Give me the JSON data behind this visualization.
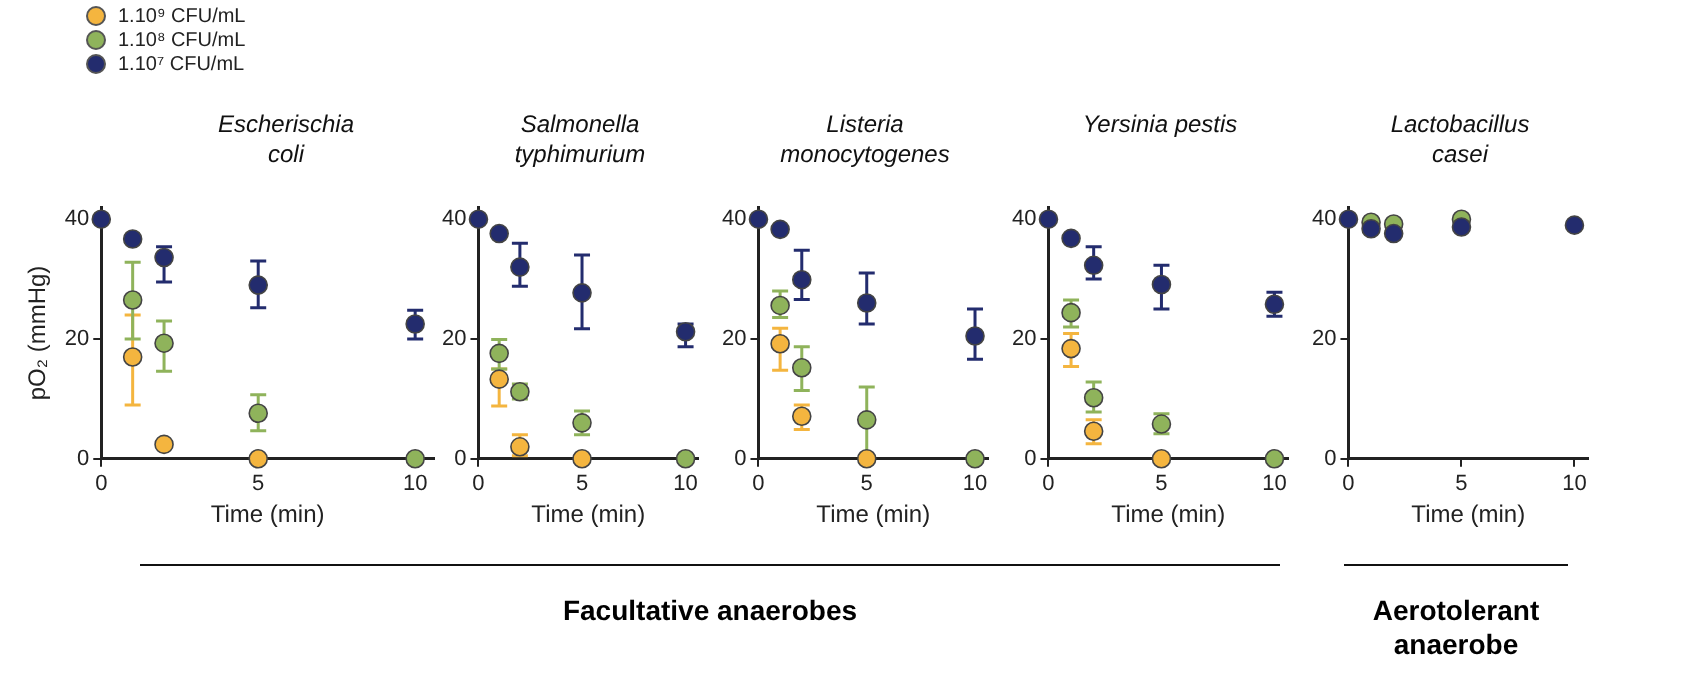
{
  "chart_data": [
    {
      "type": "scatter",
      "title": "Escherischia\ncoli",
      "xlabel": "Time (min)",
      "ylabel": "pO₂ (mmHg)",
      "x": [
        0,
        1,
        2,
        5,
        10
      ],
      "xlim": [
        0,
        10.6
      ],
      "xticks": [
        0,
        5,
        10
      ],
      "ylim": [
        0,
        42
      ],
      "yticks": [
        0,
        20,
        40
      ],
      "grid": false,
      "marker": "circle",
      "legend": "top left",
      "annotations": [
        "Facultative anaerobes"
      ],
      "series": [
        {
          "name": "1.10⁹ CFU/mL",
          "color": "#f4b53f",
          "values": [
            null,
            17,
            2.4,
            0,
            null
          ],
          "errors": [
            null,
            [
              9,
              24
            ],
            null,
            null,
            null
          ]
        },
        {
          "name": "1.10⁸ CFU/mL",
          "color": "#8fb35b",
          "values": [
            null,
            26.5,
            19.3,
            7.6,
            0
          ],
          "errors": [
            null,
            [
              20,
              32.8
            ],
            [
              14.6,
              23
            ],
            [
              4.7,
              10.7
            ],
            null
          ]
        },
        {
          "name": "1.10⁷ CFU/mL",
          "color": "#232c6e",
          "values": [
            40,
            36.7,
            33.6,
            29,
            22.5
          ],
          "errors": [
            null,
            null,
            [
              29.5,
              35.4
            ],
            [
              25.2,
              33
            ],
            [
              20,
              24.8
            ]
          ]
        }
      ]
    },
    {
      "type": "scatter",
      "title": "Salmonella\ntyphimurium",
      "xlabel": "Time (min)",
      "x": [
        0,
        1,
        2,
        5,
        10
      ],
      "xlim": [
        0,
        10.6
      ],
      "xticks": [
        0,
        5,
        10
      ],
      "ylim": [
        0,
        42
      ],
      "yticks": [
        0,
        20,
        40
      ],
      "grid": false,
      "marker": "circle",
      "series": [
        {
          "color": "#f4b53f",
          "values": [
            null,
            13.3,
            2,
            0,
            null
          ],
          "errors": [
            null,
            [
              8.8,
              15
            ],
            [
              0.5,
              4
            ],
            null,
            null
          ]
        },
        {
          "color": "#8fb35b",
          "values": [
            null,
            17.6,
            11.2,
            6,
            0
          ],
          "errors": [
            null,
            [
              15,
              19.9
            ],
            [
              10,
              12.5
            ],
            [
              4,
              8
            ],
            null
          ]
        },
        {
          "color": "#232c6e",
          "values": [
            40,
            37.6,
            32,
            27.7,
            21.2
          ],
          "errors": [
            null,
            null,
            [
              28.8,
              36
            ],
            [
              21.7,
              34
            ],
            [
              18.7,
              22.5
            ]
          ]
        }
      ]
    },
    {
      "type": "scatter",
      "title": "Listeria\nmonocytogenes",
      "xlabel": "Time (min)",
      "x": [
        0,
        1,
        2,
        5,
        10
      ],
      "xlim": [
        0,
        10.6
      ],
      "xticks": [
        0,
        5,
        10
      ],
      "ylim": [
        0,
        42
      ],
      "yticks": [
        0,
        20,
        40
      ],
      "grid": false,
      "marker": "circle",
      "series": [
        {
          "color": "#f4b53f",
          "values": [
            null,
            19.2,
            7.1,
            0,
            null
          ],
          "errors": [
            null,
            [
              14.8,
              21.8
            ],
            [
              4.9,
              9
            ],
            null,
            null
          ]
        },
        {
          "color": "#8fb35b",
          "values": [
            null,
            25.6,
            15.2,
            6.5,
            0
          ],
          "errors": [
            null,
            [
              23.6,
              28
            ],
            [
              11.4,
              18.7
            ],
            [
              0,
              12
            ],
            null
          ]
        },
        {
          "color": "#232c6e",
          "values": [
            40,
            38.3,
            29.9,
            26,
            20.5
          ],
          "errors": [
            null,
            null,
            [
              26.6,
              34.8
            ],
            [
              22.5,
              31
            ],
            [
              16.6,
              25
            ]
          ]
        }
      ]
    },
    {
      "type": "scatter",
      "title": "Yersinia pestis",
      "xlabel": "Time (min)",
      "x": [
        0,
        1,
        2,
        5,
        10
      ],
      "xlim": [
        0,
        10.6
      ],
      "xticks": [
        0,
        5,
        10
      ],
      "ylim": [
        0,
        42
      ],
      "yticks": [
        0,
        20,
        40
      ],
      "grid": false,
      "marker": "circle",
      "series": [
        {
          "color": "#f4b53f",
          "values": [
            null,
            18.4,
            4.6,
            0,
            null
          ],
          "errors": [
            null,
            [
              15.4,
              20.9
            ],
            [
              2.5,
              6.5
            ],
            null,
            null
          ]
        },
        {
          "color": "#8fb35b",
          "values": [
            null,
            24.4,
            10.2,
            5.8,
            0
          ],
          "errors": [
            null,
            [
              22,
              26.5
            ],
            [
              7.8,
              12.8
            ],
            [
              4.2,
              7.5
            ],
            null
          ]
        },
        {
          "color": "#232c6e",
          "values": [
            40,
            36.8,
            32.3,
            29.1,
            25.8
          ],
          "errors": [
            null,
            null,
            [
              30,
              35.4
            ],
            [
              25,
              32.3
            ],
            [
              23.8,
              27.8
            ]
          ]
        }
      ]
    },
    {
      "type": "scatter",
      "title": "Lactobacillus\ncasei",
      "xlabel": "Time (min)",
      "x": [
        0,
        1,
        2,
        5,
        10
      ],
      "xlim": [
        0,
        10.6
      ],
      "xticks": [
        0,
        5,
        10
      ],
      "ylim": [
        0,
        42
      ],
      "yticks": [
        0,
        20,
        40
      ],
      "grid": false,
      "marker": "circle",
      "annotations": [
        "Aerotolerant\nanaerobe"
      ],
      "series": [
        {
          "color": "#8fb35b",
          "values": [
            null,
            39.5,
            39.2,
            40,
            null
          ],
          "errors": [
            null,
            null,
            null,
            null,
            null
          ]
        },
        {
          "color": "#232c6e",
          "values": [
            40,
            38.4,
            37.6,
            38.7,
            39
          ],
          "errors": [
            null,
            null,
            null,
            null,
            null
          ]
        }
      ]
    }
  ]
}
